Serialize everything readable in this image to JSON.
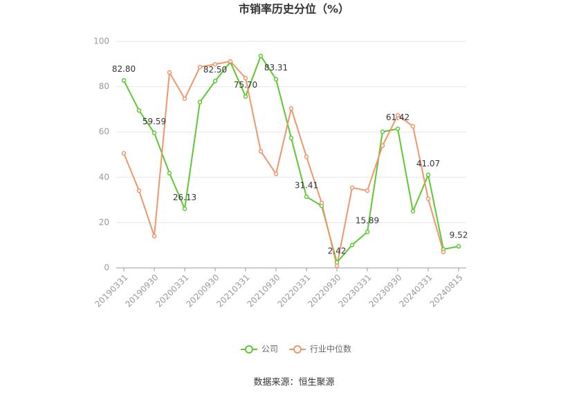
{
  "chart_data": {
    "type": "line",
    "title": "市销率历史分位（%）",
    "source": "数据来源：恒生聚源",
    "categories": [
      "20190331",
      null,
      "20190930",
      null,
      "20200331",
      null,
      "20200930",
      null,
      "20210331",
      null,
      "20210930",
      null,
      "20220331",
      null,
      "20220930",
      null,
      "20230331",
      null,
      "20230930",
      null,
      "20240331",
      null,
      "20240815"
    ],
    "series": [
      {
        "name": "公司",
        "color": "#5cc72e",
        "values": [
          82.8,
          69.5,
          59.59,
          41.8,
          26.13,
          73.2,
          82.5,
          90.9,
          75.7,
          93.6,
          83.31,
          57.3,
          31.41,
          27.4,
          2.42,
          10.1,
          15.89,
          60.1,
          61.42,
          25.0,
          41.07,
          8.2,
          9.52
        ],
        "value_labels": [
          "82.80",
          null,
          "59.59",
          null,
          "26.13",
          null,
          "82.50",
          null,
          "75.70",
          null,
          "83.31",
          null,
          "31.41",
          null,
          "2.42",
          null,
          "15.89",
          null,
          "61.42",
          null,
          "41.07",
          null,
          "9.52"
        ]
      },
      {
        "name": "行业中位数",
        "color": "#f0956a",
        "values": [
          50.6,
          34.1,
          14.0,
          86.3,
          74.7,
          88.7,
          89.9,
          91.2,
          83.8,
          51.5,
          41.5,
          70.4,
          49.1,
          28.7,
          0.9,
          35.4,
          34.1,
          54.0,
          67.4,
          62.5,
          30.5,
          7.0,
          null
        ]
      }
    ],
    "ylim": [
      0,
      100
    ],
    "yticks": [
      0,
      20,
      40,
      60,
      80,
      100
    ],
    "grid": true
  }
}
